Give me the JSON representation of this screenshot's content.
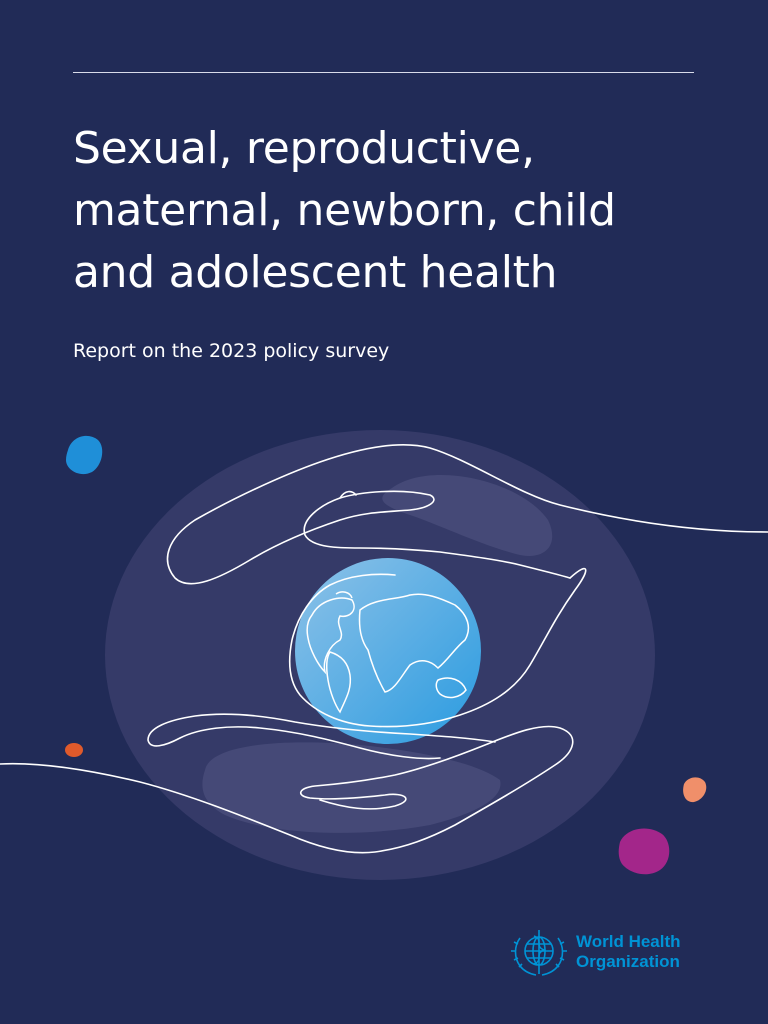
{
  "cover": {
    "title_lines": [
      "Sexual, reproductive,",
      "maternal, newborn, child",
      "and adolescent health"
    ],
    "subtitle": "Report on the 2023 policy survey"
  },
  "logo": {
    "name_line1": "World Health",
    "name_line2": "Organization",
    "emblem_icon": "who-emblem-icon"
  },
  "colors": {
    "background": "#212b57",
    "accent_blue": "#1f8fd8",
    "accent_orange": "#f08f6a",
    "accent_red_orange": "#e05a2b",
    "accent_magenta": "#a3268a",
    "who_blue": "#0093d5"
  },
  "illustration": {
    "icons": [
      "hands-line-icon",
      "globe-icon",
      "decorative-dots"
    ]
  }
}
